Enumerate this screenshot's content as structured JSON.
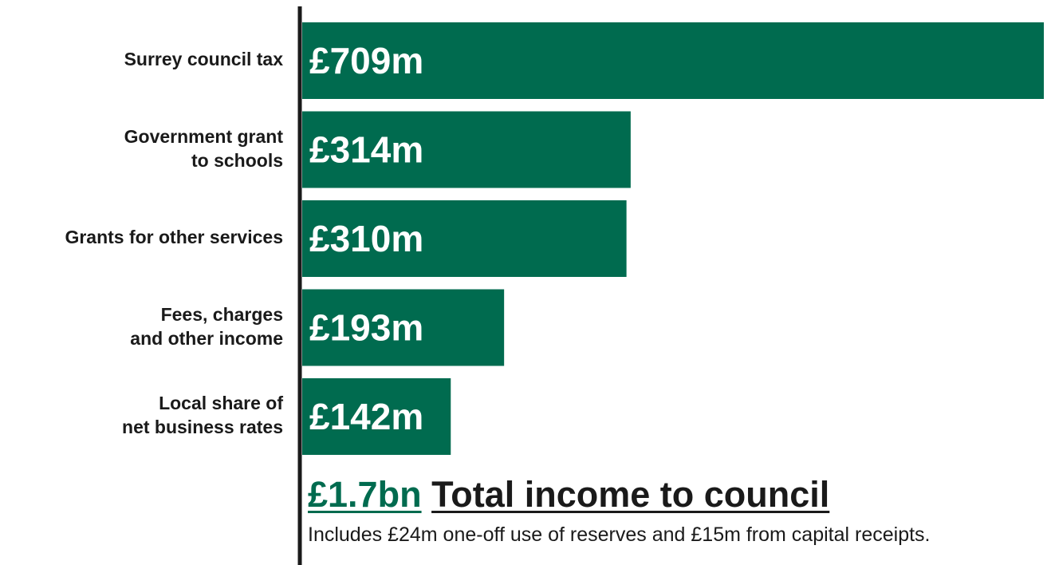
{
  "chart_data": {
    "type": "bar",
    "orientation": "horizontal",
    "categories": [
      [
        "Surrey council tax"
      ],
      [
        "Government grant",
        "to schools"
      ],
      [
        "Grants for other services"
      ],
      [
        "Fees, charges",
        "and other income"
      ],
      [
        "Local share of",
        "net business rates"
      ]
    ],
    "values": [
      709,
      314,
      310,
      193,
      142
    ],
    "value_labels": [
      "£709m",
      "£314m",
      "£310m",
      "£193m",
      "£142m"
    ],
    "unit": "£m",
    "xlim": [
      0,
      709
    ],
    "grid": false,
    "bar_color": "#006b4f",
    "axis_color": "#1a1a1a"
  },
  "summary": {
    "total_value": "£1.7bn",
    "total_text": "Total income to council",
    "footnote": "Includes £24m one-off use of reserves and £15m from capital receipts."
  }
}
